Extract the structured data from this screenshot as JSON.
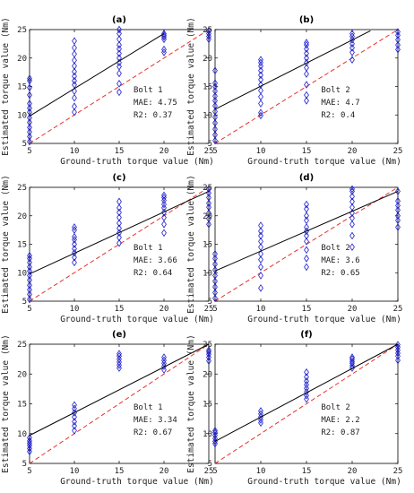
{
  "figure": {
    "ylabel": "Estimated torque value (Nm)",
    "xlabel": "Ground-truth torque value (Nm)"
  },
  "colors": {
    "marker": "#1f1fcc",
    "fit": "#000000",
    "ideal": "#e8322a",
    "axis": "#000000"
  },
  "chart_data": [
    {
      "type": "scatter",
      "title": "(a)",
      "xlabel": "Ground-truth torque value (Nm)",
      "ylabel": "Estimated torque value (Nm)",
      "xlim": [
        5,
        25
      ],
      "ylim": [
        5,
        25
      ],
      "xticks": [
        5,
        10,
        15,
        20,
        25
      ],
      "yticks": [
        5,
        10,
        15,
        20,
        25
      ],
      "stats": [
        "Bolt 1",
        "MAE: 4.75",
        "R2: 0.37"
      ],
      "fit_line": {
        "x": [
          5,
          20
        ],
        "y": [
          9.8,
          24.3
        ]
      },
      "ideal_line": {
        "x": [
          5,
          25
        ],
        "y": [
          5,
          25
        ]
      },
      "groups": [
        {
          "x": 5,
          "y": [
            5.3,
            6.2,
            7.0,
            7.8,
            8.7,
            9.5,
            10.5,
            11.2,
            12.0,
            13.5,
            14.8,
            16.0,
            16.4
          ]
        },
        {
          "x": 10,
          "y": [
            10.5,
            11.5,
            13.0,
            14.2,
            15.3,
            16.0,
            16.8,
            17.6,
            18.6,
            19.6,
            20.7,
            21.8,
            23.0
          ]
        },
        {
          "x": 15,
          "y": [
            14.0,
            15.5,
            17.3,
            18.5,
            19.2,
            20.0,
            20.8,
            21.6,
            22.3,
            23.3,
            24.3,
            25.0
          ]
        },
        {
          "x": 20,
          "y": [
            21.0,
            21.5,
            23.3,
            23.7,
            24.0,
            24.3
          ]
        },
        {
          "x": 25,
          "y": [
            23.3,
            23.8,
            24.3,
            24.8
          ]
        }
      ]
    },
    {
      "type": "scatter",
      "title": "(b)",
      "xlabel": "Ground-truth torque value (Nm)",
      "ylabel": "Estimated torque value (Nm)",
      "xlim": [
        5,
        25
      ],
      "ylim": [
        5,
        25
      ],
      "xticks": [
        5,
        10,
        15,
        20,
        25
      ],
      "yticks": [
        5,
        10,
        15,
        20,
        25
      ],
      "stats": [
        "Bolt 2",
        "MAE: 4.7",
        "R2: 0.4"
      ],
      "fit_line": {
        "x": [
          5,
          22
        ],
        "y": [
          11.0,
          24.8
        ]
      },
      "ideal_line": {
        "x": [
          5,
          25
        ],
        "y": [
          5,
          25
        ]
      },
      "groups": [
        {
          "x": 5,
          "y": [
            5.5,
            6.5,
            7.5,
            8.6,
            9.6,
            10.6,
            11.6,
            12.5,
            13.3,
            14.2,
            15.0,
            15.6,
            17.8
          ]
        },
        {
          "x": 10,
          "y": [
            9.9,
            10.4,
            12.0,
            13.2,
            14.3,
            15.3,
            16.2,
            17.0,
            17.8,
            18.6,
            19.2,
            19.7
          ]
        },
        {
          "x": 15,
          "y": [
            12.5,
            13.5,
            15.3,
            17.2,
            18.3,
            19.2,
            20.0,
            20.8,
            21.6,
            22.3,
            22.7
          ]
        },
        {
          "x": 20,
          "y": [
            19.7,
            21.0,
            21.8,
            22.5,
            23.2,
            23.8,
            24.3
          ]
        },
        {
          "x": 25,
          "y": [
            21.5,
            22.3,
            23.2,
            24.0,
            24.6
          ]
        }
      ]
    },
    {
      "type": "scatter",
      "title": "(c)",
      "xlabel": "Ground-truth torque value (Nm)",
      "ylabel": "Estimated torque value (Nm)",
      "xlim": [
        5,
        25
      ],
      "ylim": [
        5,
        25
      ],
      "xticks": [
        5,
        10,
        15,
        20,
        25
      ],
      "yticks": [
        5,
        10,
        15,
        20,
        25
      ],
      "stats": [
        "Bolt 1",
        "MAE: 3.66",
        "R2: 0.64"
      ],
      "fit_line": {
        "x": [
          5,
          25
        ],
        "y": [
          9.8,
          24.3
        ]
      },
      "ideal_line": {
        "x": [
          5,
          25
        ],
        "y": [
          5,
          25
        ]
      },
      "groups": [
        {
          "x": 5,
          "y": [
            5.3,
            6.2,
            7.0,
            7.8,
            8.7,
            9.5,
            10.3,
            11.0,
            11.8,
            12.5,
            13.0
          ]
        },
        {
          "x": 10,
          "y": [
            11.8,
            12.7,
            13.5,
            14.2,
            15.0,
            15.8,
            16.3,
            17.5,
            18.0
          ]
        },
        {
          "x": 15,
          "y": [
            15.2,
            16.2,
            17.0,
            17.8,
            18.7,
            19.7,
            20.6,
            21.4,
            22.5
          ]
        },
        {
          "x": 20,
          "y": [
            17.0,
            18.5,
            19.7,
            20.6,
            21.4,
            22.0,
            22.7,
            23.2,
            23.6
          ]
        },
        {
          "x": 25,
          "y": [
            18.5,
            19.5,
            20.5,
            21.5,
            22.2,
            23.2,
            24.0,
            24.7
          ]
        }
      ]
    },
    {
      "type": "scatter",
      "title": "(d)",
      "xlabel": "Ground-truth torque value (Nm)",
      "ylabel": "Estimated torque value (Nm)",
      "xlim": [
        5,
        25
      ],
      "ylim": [
        5,
        25
      ],
      "xticks": [
        5,
        10,
        15,
        20,
        25
      ],
      "yticks": [
        5,
        10,
        15,
        20,
        25
      ],
      "stats": [
        "Bolt 2",
        "MAE: 3.6",
        "R2: 0.65"
      ],
      "fit_line": {
        "x": [
          5,
          25
        ],
        "y": [
          10.3,
          24.3
        ]
      },
      "ideal_line": {
        "x": [
          5,
          25
        ],
        "y": [
          5,
          25
        ]
      },
      "groups": [
        {
          "x": 5,
          "y": [
            5.5,
            6.5,
            7.5,
            8.5,
            9.5,
            10.5,
            11.5,
            12.5,
            13.3
          ]
        },
        {
          "x": 10,
          "y": [
            7.3,
            9.5,
            11.0,
            12.3,
            13.3,
            14.5,
            15.5,
            16.5,
            17.3,
            18.3
          ]
        },
        {
          "x": 15,
          "y": [
            11.0,
            12.5,
            14.0,
            15.5,
            16.5,
            17.3,
            18.0,
            19.2,
            20.0,
            21.2,
            22.0
          ]
        },
        {
          "x": 20,
          "y": [
            14.5,
            16.5,
            18.5,
            19.6,
            20.5,
            21.5,
            22.5,
            23.4,
            24.3,
            24.7
          ]
        },
        {
          "x": 25,
          "y": [
            18.0,
            19.2,
            20.0,
            21.0,
            21.8,
            22.6,
            24.3
          ]
        }
      ]
    },
    {
      "type": "scatter",
      "title": "(e)",
      "xlabel": "Ground-truth torque value (Nm)",
      "ylabel": "Estimated torque value (Nm)",
      "xlim": [
        5,
        25
      ],
      "ylim": [
        5,
        25
      ],
      "xticks": [
        5,
        10,
        15,
        20,
        25
      ],
      "yticks": [
        5,
        10,
        15,
        20,
        25
      ],
      "stats": [
        "Bolt 1",
        "MAE: 3.34",
        "R2: 0.67"
      ],
      "fit_line": {
        "x": [
          5,
          25
        ],
        "y": [
          9.7,
          25.0
        ]
      },
      "ideal_line": {
        "x": [
          5,
          25
        ],
        "y": [
          5,
          25
        ]
      },
      "groups": [
        {
          "x": 5,
          "y": [
            7.0,
            7.5,
            8.0,
            8.4,
            8.8,
            9.3
          ]
        },
        {
          "x": 10,
          "y": [
            10.5,
            11.3,
            12.0,
            12.8,
            13.5,
            14.2,
            14.8
          ]
        },
        {
          "x": 15,
          "y": [
            21.0,
            21.5,
            22.0,
            22.5,
            23.0,
            23.4
          ]
        },
        {
          "x": 20,
          "y": [
            20.7,
            21.3,
            21.8,
            22.3,
            22.8
          ]
        },
        {
          "x": 25,
          "y": [
            22.2,
            22.8,
            23.3,
            23.7,
            24.0
          ]
        }
      ]
    },
    {
      "type": "scatter",
      "title": "(f)",
      "xlabel": "Ground-truth torque value (Nm)",
      "ylabel": "Estimated torque value (Nm)",
      "xlim": [
        5,
        25
      ],
      "ylim": [
        5,
        25
      ],
      "xticks": [
        5,
        10,
        15,
        20,
        25
      ],
      "yticks": [
        5,
        10,
        15,
        20,
        25
      ],
      "stats": [
        "Bolt 2",
        "MAE: 2.2",
        "R2: 0.87"
      ],
      "fit_line": {
        "x": [
          5,
          25
        ],
        "y": [
          8.7,
          25.0
        ]
      },
      "ideal_line": {
        "x": [
          5,
          25
        ],
        "y": [
          5,
          25
        ]
      },
      "groups": [
        {
          "x": 5,
          "y": [
            8.3,
            8.7,
            9.2,
            9.7,
            10.2,
            10.5
          ]
        },
        {
          "x": 10,
          "y": [
            11.8,
            12.3,
            12.8,
            13.3,
            13.8
          ]
        },
        {
          "x": 15,
          "y": [
            15.8,
            16.4,
            17.0,
            17.6,
            18.2,
            18.8,
            19.5,
            20.3
          ]
        },
        {
          "x": 20,
          "y": [
            21.0,
            21.4,
            21.8,
            22.1,
            22.5,
            22.8
          ]
        },
        {
          "x": 25,
          "y": [
            22.3,
            23.0,
            23.5,
            24.0,
            24.5,
            24.9
          ]
        }
      ]
    }
  ]
}
